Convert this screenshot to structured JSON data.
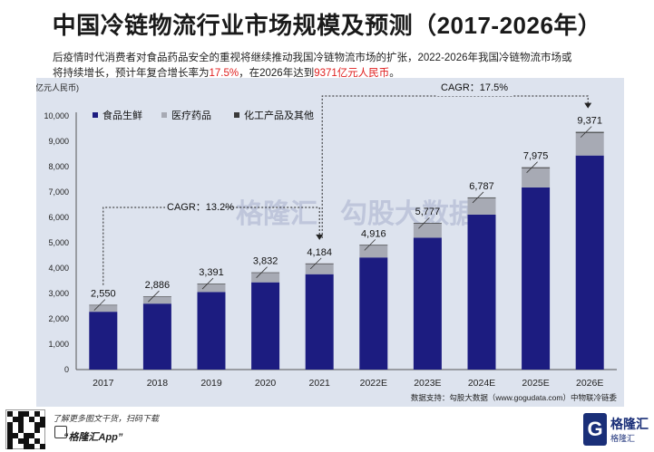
{
  "page": {
    "title": "中国冷链物流行业市场规模及预测（2017-2026年）",
    "subtitle_line1": "后疫情时代消费者对食品药品安全的重视将继续推动我国冷链物流市场的扩张，2022-2026年我国冷链物流市场或",
    "subtitle_line2_a": "将持续增长，预计年复合增长率为",
    "subtitle_line2_hl1": "17.5%",
    "subtitle_line2_b": "，在2026年达到",
    "subtitle_line2_hl2": "9371亿元人民币",
    "subtitle_line2_c": "。",
    "highlight_color": "#e02020"
  },
  "chart_data": {
    "type": "bar",
    "stacked": true,
    "ylabel": "(亿元人民币)",
    "ylim": [
      0,
      10000
    ],
    "ytick_step": 1000,
    "ytick_labels": [
      "0",
      "1,000",
      "2,000",
      "3,000",
      "4,000",
      "5,000",
      "6,000",
      "7,000",
      "8,000",
      "9,000",
      "10,000"
    ],
    "categories": [
      "2017",
      "2018",
      "2019",
      "2020",
      "2021",
      "2022E",
      "2023E",
      "2024E",
      "2025E",
      "2026E"
    ],
    "totals": [
      2550,
      2886,
      3391,
      3832,
      4184,
      4916,
      5777,
      6787,
      7975,
      9371
    ],
    "total_labels": [
      "2,550",
      "2,886",
      "3,391",
      "3,832",
      "4,184",
      "4,916",
      "5,777",
      "6,787",
      "7,975",
      "9,371"
    ],
    "series": [
      {
        "name": "食品生鲜",
        "color": "#1c1c80",
        "values": [
          2280,
          2600,
          3060,
          3440,
          3760,
          4420,
          5200,
          6110,
          7180,
          8440
        ]
      },
      {
        "name": "医疗药品",
        "color": "#a7aab4",
        "values": [
          250,
          265,
          310,
          370,
          400,
          470,
          550,
          650,
          760,
          890
        ]
      },
      {
        "name": "化工产品及其他",
        "color": "#3a3a3a",
        "values": [
          20,
          21,
          21,
          22,
          24,
          26,
          27,
          27,
          35,
          41
        ]
      }
    ],
    "legend_position": "top-left",
    "grid": false,
    "annotations": [
      {
        "label": "CAGR：",
        "value": "13.2%",
        "from": "2017",
        "to": "2021"
      },
      {
        "label": "CAGR：",
        "value": "17.5%",
        "from": "2021",
        "to": "2026E"
      }
    ],
    "source": "数据支持：勾股大数据（www.gogudata.com）中物联冷链委"
  },
  "watermark": {
    "text1": "格隆汇",
    "text2": "勾股大数据"
  },
  "footer": {
    "line1": "了解更多图文干货，扫码下载",
    "line2": "“格隆汇App”",
    "logo_name": "格隆汇",
    "logo_mark": "G",
    "logo_sub": "格隆汇"
  }
}
